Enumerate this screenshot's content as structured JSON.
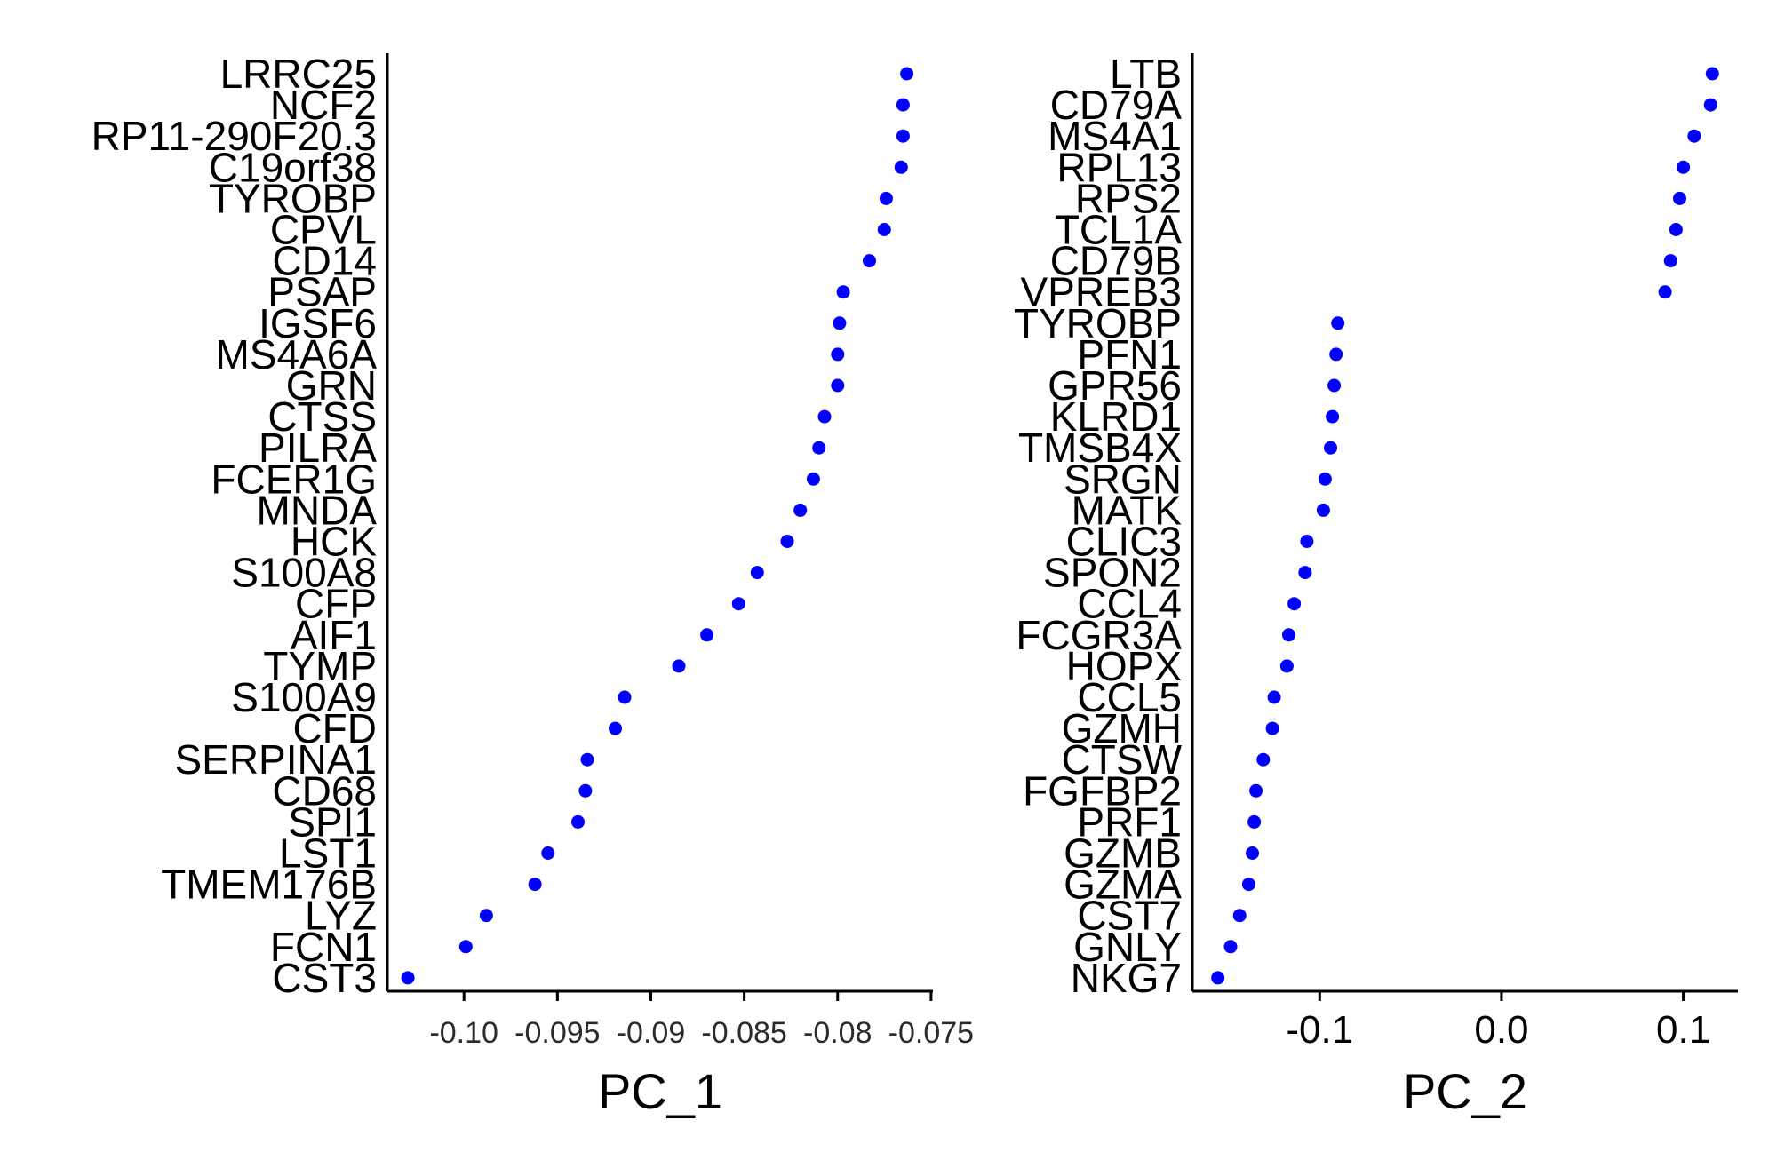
{
  "chart_data": [
    {
      "type": "scatter",
      "xlabel": "PC_1",
      "ylabel": "",
      "xlim": [
        -0.1041,
        -0.0749
      ],
      "xticks": [
        -0.1,
        -0.095,
        -0.09,
        -0.085,
        -0.08,
        -0.075
      ],
      "xtick_labels": [
        "-0.10",
        "-0.095",
        "-0.09",
        "-0.085",
        "-0.08",
        "-0.075"
      ],
      "point_color": "#0000ff",
      "grid": false,
      "categories": [
        "LRRC25",
        "NCF2",
        "RP11-290F20.3",
        "C19orf38",
        "TYROBP",
        "CPVL",
        "CD14",
        "PSAP",
        "IGSF6",
        "MS4A6A",
        "GRN",
        "CTSS",
        "PILRA",
        "FCER1G",
        "MNDA",
        "HCK",
        "S100A8",
        "CFP",
        "AIF1",
        "TYMP",
        "S100A9",
        "CFD",
        "SERPINA1",
        "CD68",
        "SPI1",
        "LST1",
        "TMEM176B",
        "LYZ",
        "FCN1",
        "CST3"
      ],
      "values": [
        -0.0763,
        -0.0765,
        -0.0765,
        -0.0766,
        -0.0774,
        -0.0775,
        -0.0783,
        -0.0797,
        -0.0799,
        -0.08,
        -0.08,
        -0.0807,
        -0.081,
        -0.0813,
        -0.082,
        -0.0827,
        -0.0843,
        -0.0853,
        -0.087,
        -0.0885,
        -0.0914,
        -0.0919,
        -0.0934,
        -0.0935,
        -0.0939,
        -0.0955,
        -0.0962,
        -0.0988,
        -0.0999,
        -0.103
      ]
    },
    {
      "type": "scatter",
      "xlabel": "PC_2",
      "ylabel": "",
      "xlim": [
        -0.17,
        0.13
      ],
      "xticks": [
        -0.1,
        0.0,
        0.1
      ],
      "xtick_labels": [
        "-0.1",
        "0.0",
        "0.1"
      ],
      "point_color": "#0000ff",
      "grid": false,
      "categories": [
        "LTB",
        "CD79A",
        "MS4A1",
        "RPL13",
        "RPS2",
        "TCL1A",
        "CD79B",
        "VPREB3",
        "TYROBP",
        "PFN1",
        "GPR56",
        "KLRD1",
        "TMSB4X",
        "SRGN",
        "MATK",
        "CLIC3",
        "SPON2",
        "CCL4",
        "FCGR3A",
        "HOPX",
        "CCL5",
        "GZMH",
        "CTSW",
        "FGFBP2",
        "PRF1",
        "GZMB",
        "GZMA",
        "CST7",
        "GNLY",
        "NKG7"
      ],
      "values": [
        0.116,
        0.115,
        0.106,
        0.1,
        0.098,
        0.096,
        0.093,
        0.09,
        -0.09,
        -0.091,
        -0.092,
        -0.093,
        -0.094,
        -0.097,
        -0.098,
        -0.107,
        -0.108,
        -0.114,
        -0.117,
        -0.118,
        -0.125,
        -0.126,
        -0.131,
        -0.135,
        -0.136,
        -0.137,
        -0.139,
        -0.144,
        -0.149,
        -0.156
      ]
    }
  ]
}
